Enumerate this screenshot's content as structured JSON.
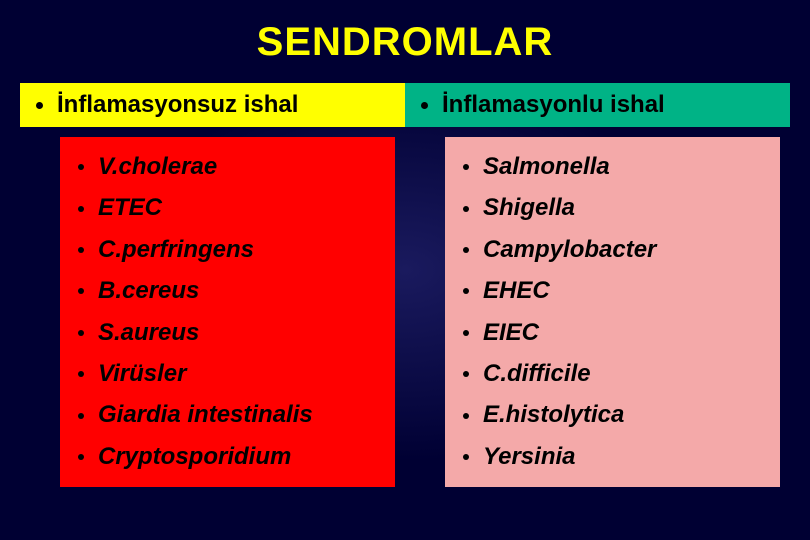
{
  "title": {
    "text": "SENDROMLAR",
    "color": "#ffff00",
    "fontsize": 40
  },
  "background": {
    "outer": "#000033",
    "inner": "#1a1a5e"
  },
  "columns": {
    "left": {
      "header": "İnflamasyonsuz ishal",
      "header_bg": "#ffff00",
      "box_bg": "#ff0000",
      "items": [
        "V.cholerae",
        "ETEC",
        "C.perfringens",
        "B.cereus",
        "S.aureus",
        "Virüsler",
        "Giardia intestinalis",
        "Cryptosporidium"
      ],
      "item_fontsize": 24,
      "item_color": "#000000"
    },
    "right": {
      "header": "İnflamasyonlu ishal",
      "header_bg": "#00b386",
      "box_bg": "#f4a9a9",
      "items": [
        "Salmonella",
        "Shigella",
        "Campylobacter",
        "EHEC",
        "EIEC",
        "C.difficile",
        "E.histolytica",
        "Yersinia"
      ],
      "item_fontsize": 24,
      "item_color": "#000000"
    }
  }
}
